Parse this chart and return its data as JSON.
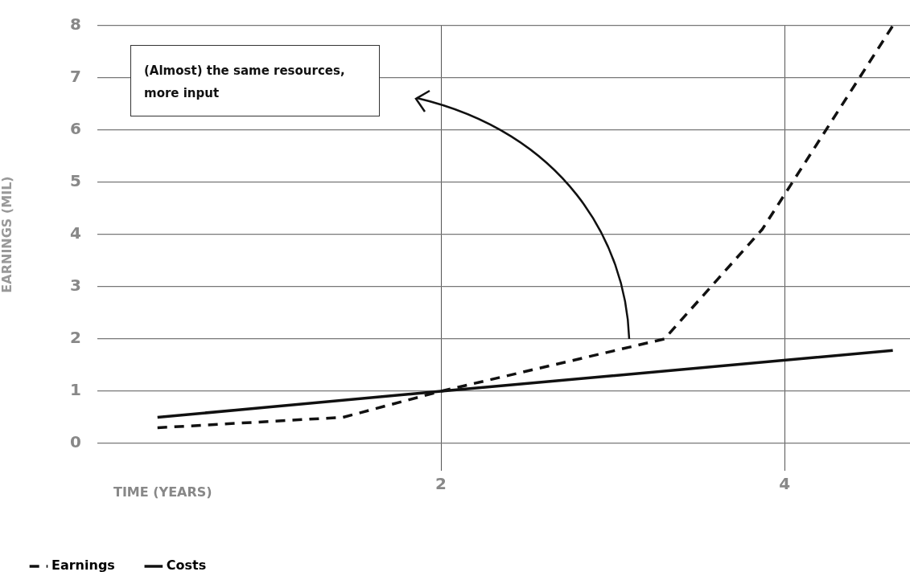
{
  "chart_data": {
    "type": "line",
    "xlabel": "TIME (YEARS)",
    "ylabel": "EARNINGS (MIL)",
    "annotations": [
      "(Almost) the same resources, more input"
    ],
    "xlim": [
      0,
      4.73
    ],
    "xticks": [
      2,
      4
    ],
    "ylim": [
      0,
      8
    ],
    "yticks": [
      0,
      1,
      2,
      3,
      4,
      5,
      6,
      7,
      8
    ],
    "grid": true,
    "legend": "bottom left",
    "marker": "none",
    "series": [
      {
        "name": "Earnings",
        "color": "#111111",
        "line_style": "dashed",
        "x": [
          0.35,
          1.43,
          2,
          3.3,
          3.87,
          4.63
        ],
        "values": [
          0.3,
          0.5,
          1,
          2,
          4.1,
          8
        ]
      },
      {
        "name": "Costs",
        "color": "#111111",
        "line_style": "solid",
        "x": [
          0.35,
          2,
          4.63
        ],
        "values": [
          0.5,
          1,
          1.78
        ]
      }
    ]
  }
}
